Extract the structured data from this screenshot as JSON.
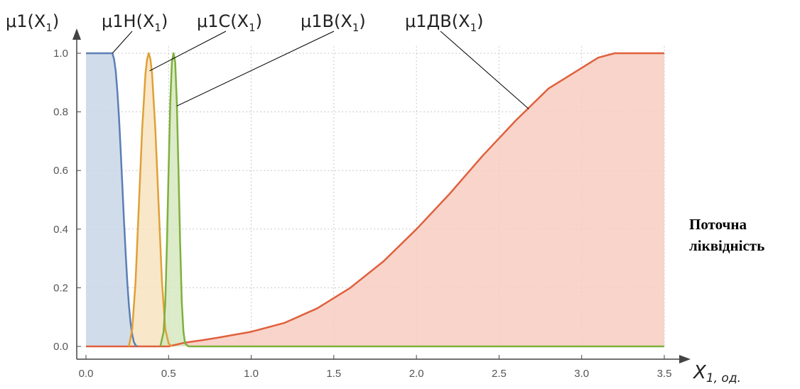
{
  "chart_data": {
    "type": "area",
    "xlabel": "X",
    "xlabel_sub": "1, од.",
    "ylabel": "μ1(X",
    "ylabel_sub": "1",
    "ylabel_close": ")",
    "xlim": [
      0,
      3.5
    ],
    "ylim": [
      0,
      1.0
    ],
    "grid": true,
    "x_ticks": [
      "0.0",
      "0.5",
      "1.0",
      "1.5",
      "2.0",
      "2.5",
      "3.0",
      "3.5"
    ],
    "y_ticks": [
      "0.0",
      "0.2",
      "0.4",
      "0.6",
      "0.8",
      "1.0"
    ],
    "series": [
      {
        "name": "μ1Н(X",
        "sub": "1",
        "close": ")",
        "color": "#5b7fb5",
        "fill": "#c9d6e8",
        "x": [
          0.0,
          0.16,
          0.17,
          0.18,
          0.19,
          0.2,
          0.21,
          0.22,
          0.23,
          0.24,
          0.25,
          0.26,
          0.27,
          0.28,
          0.29,
          0.3,
          0.31
        ],
        "y": [
          1.0,
          1.0,
          0.98,
          0.94,
          0.87,
          0.78,
          0.67,
          0.55,
          0.43,
          0.32,
          0.22,
          0.14,
          0.08,
          0.04,
          0.015,
          0.004,
          0.0
        ],
        "label_anchor": [
          0.16,
          1.0
        ]
      },
      {
        "name": "μ1С(X",
        "sub": "1",
        "close": ")",
        "color": "#e0a035",
        "fill": "#f7e3bf",
        "x": [
          0.26,
          0.28,
          0.3,
          0.32,
          0.34,
          0.36,
          0.37,
          0.38,
          0.39,
          0.4,
          0.42,
          0.44,
          0.46,
          0.48,
          0.5,
          0.52
        ],
        "y": [
          0.0,
          0.06,
          0.22,
          0.48,
          0.74,
          0.93,
          0.98,
          1.0,
          0.98,
          0.93,
          0.74,
          0.48,
          0.22,
          0.06,
          0.01,
          0.0
        ],
        "label_anchor": [
          0.385,
          0.94
        ]
      },
      {
        "name": "μ1В(X",
        "sub": "1",
        "close": ")",
        "color": "#7eb03d",
        "fill": "#d6e8bf",
        "x": [
          0.45,
          0.47,
          0.48,
          0.49,
          0.5,
          0.51,
          0.52,
          0.53,
          0.54,
          0.55,
          0.56,
          0.57,
          0.58,
          0.59,
          0.6,
          0.62,
          3.5
        ],
        "y": [
          0.0,
          0.05,
          0.15,
          0.35,
          0.6,
          0.83,
          0.97,
          1.0,
          0.97,
          0.83,
          0.6,
          0.35,
          0.15,
          0.05,
          0.01,
          0.0,
          0.0
        ],
        "label_anchor": [
          0.55,
          0.82
        ]
      },
      {
        "name": "μ1ДВ(X",
        "sub": "1",
        "close": ")",
        "color": "#e0603d",
        "fill": "#f7cdc1",
        "x": [
          0.0,
          0.5,
          0.6,
          0.7,
          0.8,
          0.9,
          1.0,
          1.2,
          1.4,
          1.6,
          1.8,
          2.0,
          2.2,
          2.4,
          2.6,
          2.8,
          3.0,
          3.1,
          3.2,
          3.25,
          3.5
        ],
        "y": [
          0.0,
          0.0,
          0.013,
          0.021,
          0.03,
          0.04,
          0.05,
          0.08,
          0.13,
          0.2,
          0.29,
          0.4,
          0.52,
          0.65,
          0.77,
          0.88,
          0.95,
          0.985,
          1.0,
          1.0,
          1.0
        ],
        "label_anchor": [
          2.68,
          0.81
        ]
      }
    ]
  },
  "side_note": {
    "line1": "Поточна",
    "line2": "ліквідність"
  }
}
